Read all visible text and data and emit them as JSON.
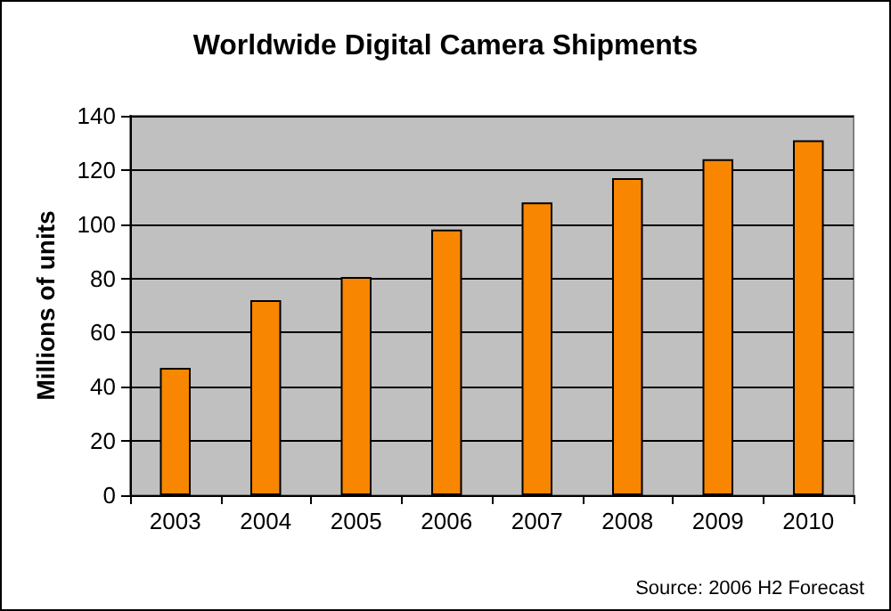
{
  "chart_data": {
    "type": "bar",
    "title": "Worldwide Digital Camera Shipments",
    "ylabel": "Millions of units",
    "categories": [
      "2003",
      "2004",
      "2005",
      "2006",
      "2007",
      "2008",
      "2009",
      "2010"
    ],
    "values": [
      47,
      72,
      80.5,
      98,
      108,
      117,
      124,
      131
    ],
    "color": "#f88600",
    "ylim": [
      0,
      140
    ],
    "yticks": [
      0,
      20,
      40,
      60,
      80,
      100,
      120,
      140
    ],
    "grid": "y",
    "annotations": [
      "Source: 2006 H2 Forecast"
    ]
  }
}
